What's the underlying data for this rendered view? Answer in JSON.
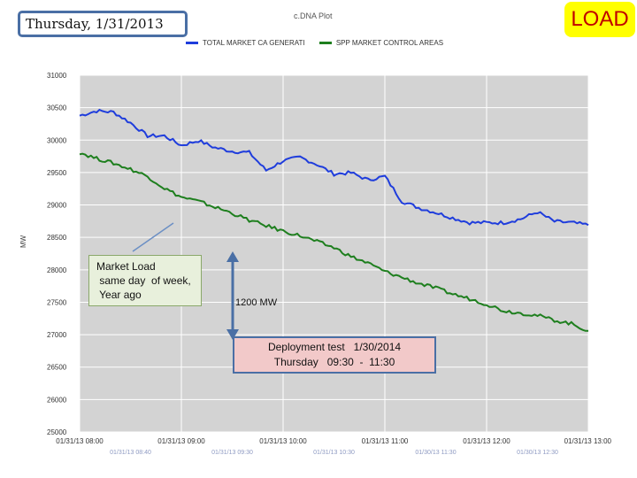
{
  "header": {
    "date": "Thursday, 1/31/2013",
    "badge": "LOAD",
    "plot_title": "c.DNA Plot"
  },
  "annotations": {
    "callout": "Market Load\n same day  of week,\n Year ago",
    "difference": "1200 MW",
    "deployment": "Deployment test   1/30/2014\nThursday   09:30  -  11:30"
  },
  "colors": {
    "blue": "#1f3ddc",
    "green": "#1e7f1e",
    "plot_bg": "#d3d3d3"
  },
  "chart_data": {
    "type": "line",
    "ylabel": "MW",
    "ylim": [
      25000,
      31000
    ],
    "y_ticks": [
      "31000",
      "30500",
      "30000",
      "29500",
      "29000",
      "28500",
      "28000",
      "27500",
      "27000",
      "26500",
      "26000"
    ],
    "x_range_hours": [
      "08:00",
      "13:00"
    ],
    "x_ticks": [
      "01/31/13 08:00",
      "01/31/13 09:00",
      "01/31/13 10:00",
      "01/31/13 11:00",
      "01/31/13 12:00",
      "01/31/13 13:00"
    ],
    "x_ticks_secondary": [
      "01/31/13 08:40",
      "01/31/13 09:30",
      "01/31/13 10:30",
      "01/30/13 11:30",
      "01/30/13 12:30"
    ],
    "series": [
      {
        "name": "TOTAL MARKET CA GENERATI",
        "color": "#1f3ddc",
        "x": [
          "08:00",
          "08:10",
          "08:20",
          "08:30",
          "08:40",
          "08:50",
          "09:00",
          "09:10",
          "09:20",
          "09:30",
          "09:40",
          "09:50",
          "10:00",
          "10:10",
          "10:20",
          "10:30",
          "10:40",
          "10:50",
          "11:00",
          "11:10",
          "11:20",
          "11:30",
          "11:40",
          "11:50",
          "12:00",
          "12:10",
          "12:20",
          "12:30",
          "12:40",
          "12:50",
          "13:00"
        ],
        "y": [
          30320,
          30400,
          30380,
          30200,
          29980,
          29980,
          29820,
          29900,
          29780,
          29720,
          29700,
          29400,
          29560,
          29620,
          29500,
          29340,
          29360,
          29240,
          29300,
          28880,
          28770,
          28690,
          28600,
          28520,
          28520,
          28520,
          28580,
          28700,
          28540,
          28520,
          28480
        ]
      },
      {
        "name": "SPP MARKET CONTROL AREAS",
        "color": "#1e7f1e",
        "x": [
          "08:00",
          "08:10",
          "08:20",
          "08:30",
          "08:40",
          "08:50",
          "09:00",
          "09:10",
          "09:20",
          "09:30",
          "09:40",
          "09:50",
          "10:00",
          "10:10",
          "10:20",
          "10:30",
          "10:40",
          "10:50",
          "11:00",
          "11:10",
          "11:20",
          "11:30",
          "11:40",
          "11:50",
          "12:00",
          "12:10",
          "12:20",
          "12:30",
          "12:40",
          "12:50",
          "13:00"
        ],
        "y": [
          29700,
          29600,
          29520,
          29420,
          29300,
          29100,
          28950,
          28880,
          28780,
          28680,
          28560,
          28470,
          28380,
          28300,
          28200,
          28100,
          27950,
          27840,
          27700,
          27600,
          27500,
          27420,
          27320,
          27240,
          27150,
          27040,
          27000,
          26960,
          26880,
          26820,
          26700
        ]
      }
    ]
  }
}
